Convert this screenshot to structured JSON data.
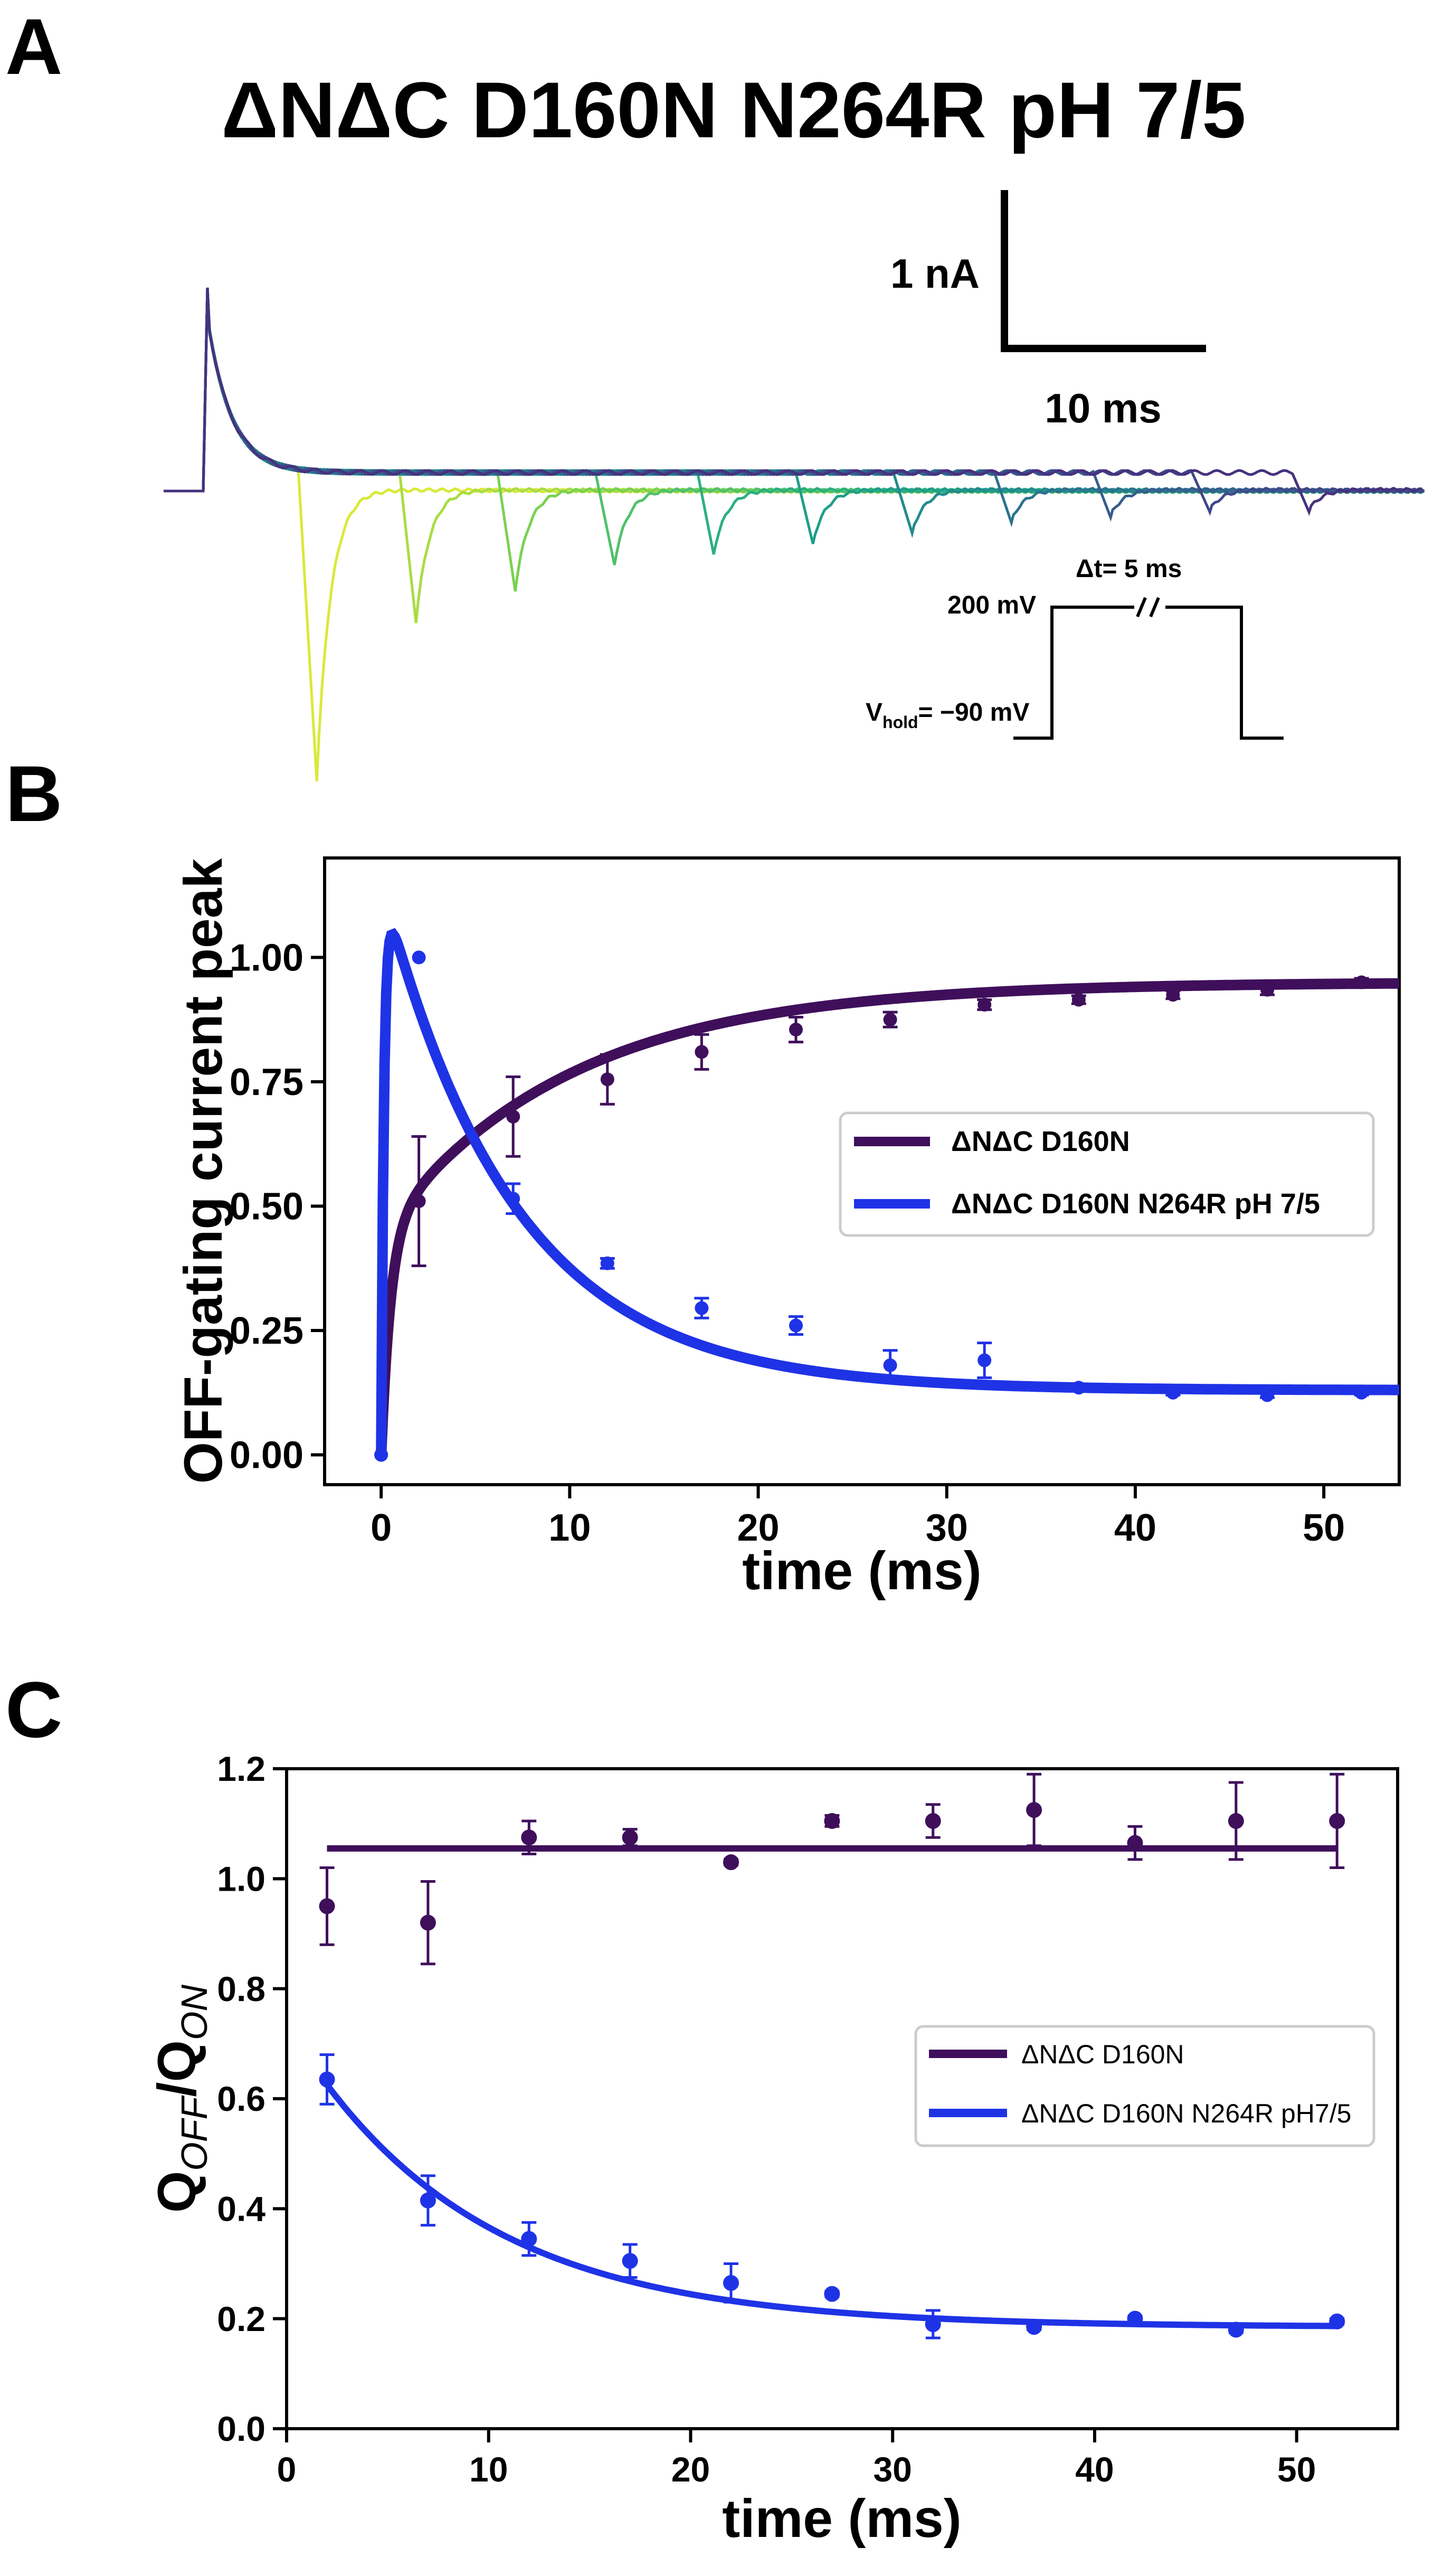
{
  "colors": {
    "purple": "#3f0f5b",
    "blue": "#1f33e6",
    "black": "#000000",
    "viridis": [
      "#d9e93a",
      "#a9dc42",
      "#7ad151",
      "#4fc16b",
      "#2ab07f",
      "#1f9e89",
      "#228b8d",
      "#2c728e",
      "#365d8d",
      "#3f4889",
      "#46327e",
      "#440154"
    ]
  },
  "panel_a": {
    "label": "A",
    "title": "ΔNΔC D160N N264R pH 7/5",
    "scale_y_label": "1 nA",
    "scale_x_label": "10 ms",
    "protocol": {
      "high_label": "200 mV",
      "hold_label_main": "V",
      "hold_label_sub": "hold",
      "hold_label_tail": "= −90 mV",
      "dt_label": "Δt= 5 ms"
    },
    "traces": {
      "time_range_ms": [
        0,
        42
      ],
      "intervals_ms": [
        2,
        7,
        12,
        17,
        22,
        27,
        32,
        37,
        42,
        47,
        52
      ],
      "off_peak_relative": [
        0.55,
        0.25,
        0.19,
        0.14,
        0.12,
        0.1,
        0.08,
        0.06,
        0.05,
        0.04,
        0.04
      ]
    }
  },
  "panel_b": {
    "label": "B",
    "chart_data": {
      "type": "line",
      "xlabel": "time (ms)",
      "ylabel": "OFF-gating current peak",
      "xlim": [
        -3,
        54
      ],
      "ylim": [
        -0.06,
        1.2
      ],
      "xticks": [
        0,
        10,
        20,
        30,
        40,
        50
      ],
      "xtick_labels": [
        "0",
        "10",
        "20",
        "30",
        "40",
        "50"
      ],
      "yticks": [
        0,
        0.25,
        0.5,
        0.75,
        1.0
      ],
      "ytick_labels": [
        "0.00",
        "0.25",
        "0.50",
        "0.75",
        "1.00"
      ],
      "legend_position": "center-right",
      "series": [
        {
          "name": "ΔNΔC D160N",
          "color": "#3f0f5b",
          "x": [
            0,
            2,
            7,
            12,
            17,
            22,
            27,
            32,
            37,
            42,
            47,
            52
          ],
          "y": [
            0.0,
            0.51,
            0.68,
            0.755,
            0.81,
            0.855,
            0.875,
            0.905,
            0.915,
            0.925,
            0.935,
            0.95
          ],
          "err": [
            0,
            0.13,
            0.08,
            0.05,
            0.035,
            0.025,
            0.015,
            0.01,
            0.008,
            0.008,
            0.01,
            0.008
          ],
          "fit": {
            "model": "double_exponential_rise",
            "A1": 0.45,
            "tau1_ms": 0.5,
            "A2": 0.5,
            "tau2_ms": 10,
            "c": 0.0
          }
        },
        {
          "name": "ΔNΔC D160N N264R pH 7/5",
          "color": "#1f33e6",
          "x": [
            0,
            2,
            7,
            12,
            17,
            22,
            27,
            32,
            37,
            42,
            47,
            52
          ],
          "y": [
            0.0,
            1.0,
            0.515,
            0.385,
            0.295,
            0.26,
            0.18,
            0.19,
            0.135,
            0.125,
            0.12,
            0.125
          ],
          "err": [
            0,
            0.0,
            0.03,
            0.01,
            0.02,
            0.018,
            0.03,
            0.035,
            0.005,
            0.005,
            0.005,
            0.005
          ],
          "fit": {
            "model": "rise_then_decay",
            "A": 1.02,
            "tau_decay_ms": 7,
            "tau_rise_ms": 0.15,
            "c": 0.13
          }
        }
      ]
    }
  },
  "panel_c": {
    "label": "C",
    "chart_data": {
      "type": "scatter",
      "xlabel": "time (ms)",
      "ylabel_main": "Q",
      "ylabel_sub1": "OFF",
      "ylabel_mid": "/Q",
      "ylabel_sub2": "ON",
      "xlim": [
        0,
        55
      ],
      "ylim": [
        0,
        1.2
      ],
      "xticks": [
        0,
        10,
        20,
        30,
        40,
        50
      ],
      "xtick_labels": [
        "0",
        "10",
        "20",
        "30",
        "40",
        "50"
      ],
      "yticks": [
        0,
        0.2,
        0.4,
        0.6,
        0.8,
        1.0,
        1.2
      ],
      "ytick_labels": [
        "0.0",
        "0.2",
        "0.4",
        "0.6",
        "0.8",
        "1.0",
        "1.2"
      ],
      "legend_position": "center-right",
      "series": [
        {
          "name": "ΔNΔC D160N",
          "color": "#3f0f5b",
          "x": [
            2,
            7,
            12,
            17,
            22,
            27,
            32,
            37,
            42,
            47,
            52
          ],
          "y": [
            0.95,
            0.92,
            1.075,
            1.075,
            1.03,
            1.105,
            1.105,
            1.125,
            1.065,
            1.105,
            1.105
          ],
          "err": [
            0.07,
            0.075,
            0.03,
            0.015,
            0.005,
            0.01,
            0.03,
            0.065,
            0.03,
            0.07,
            0.085
          ],
          "fit": {
            "model": "constant",
            "value": 1.055,
            "x_range": [
              2,
              52
            ]
          }
        },
        {
          "name": "ΔNΔC D160N N264R pH7/5",
          "color": "#1f33e6",
          "x": [
            2,
            7,
            12,
            17,
            22,
            27,
            32,
            37,
            42,
            47,
            52
          ],
          "y": [
            0.635,
            0.415,
            0.345,
            0.305,
            0.265,
            0.245,
            0.19,
            0.185,
            0.2,
            0.18,
            0.195
          ],
          "err": [
            0.045,
            0.045,
            0.03,
            0.03,
            0.035,
            0.005,
            0.025,
            0.005,
            0.005,
            0.005,
            0.005
          ],
          "fit": {
            "model": "exponential_decay",
            "A": 0.55,
            "tau_ms": 9,
            "c": 0.185,
            "x_range": [
              2,
              52
            ]
          }
        }
      ]
    }
  }
}
